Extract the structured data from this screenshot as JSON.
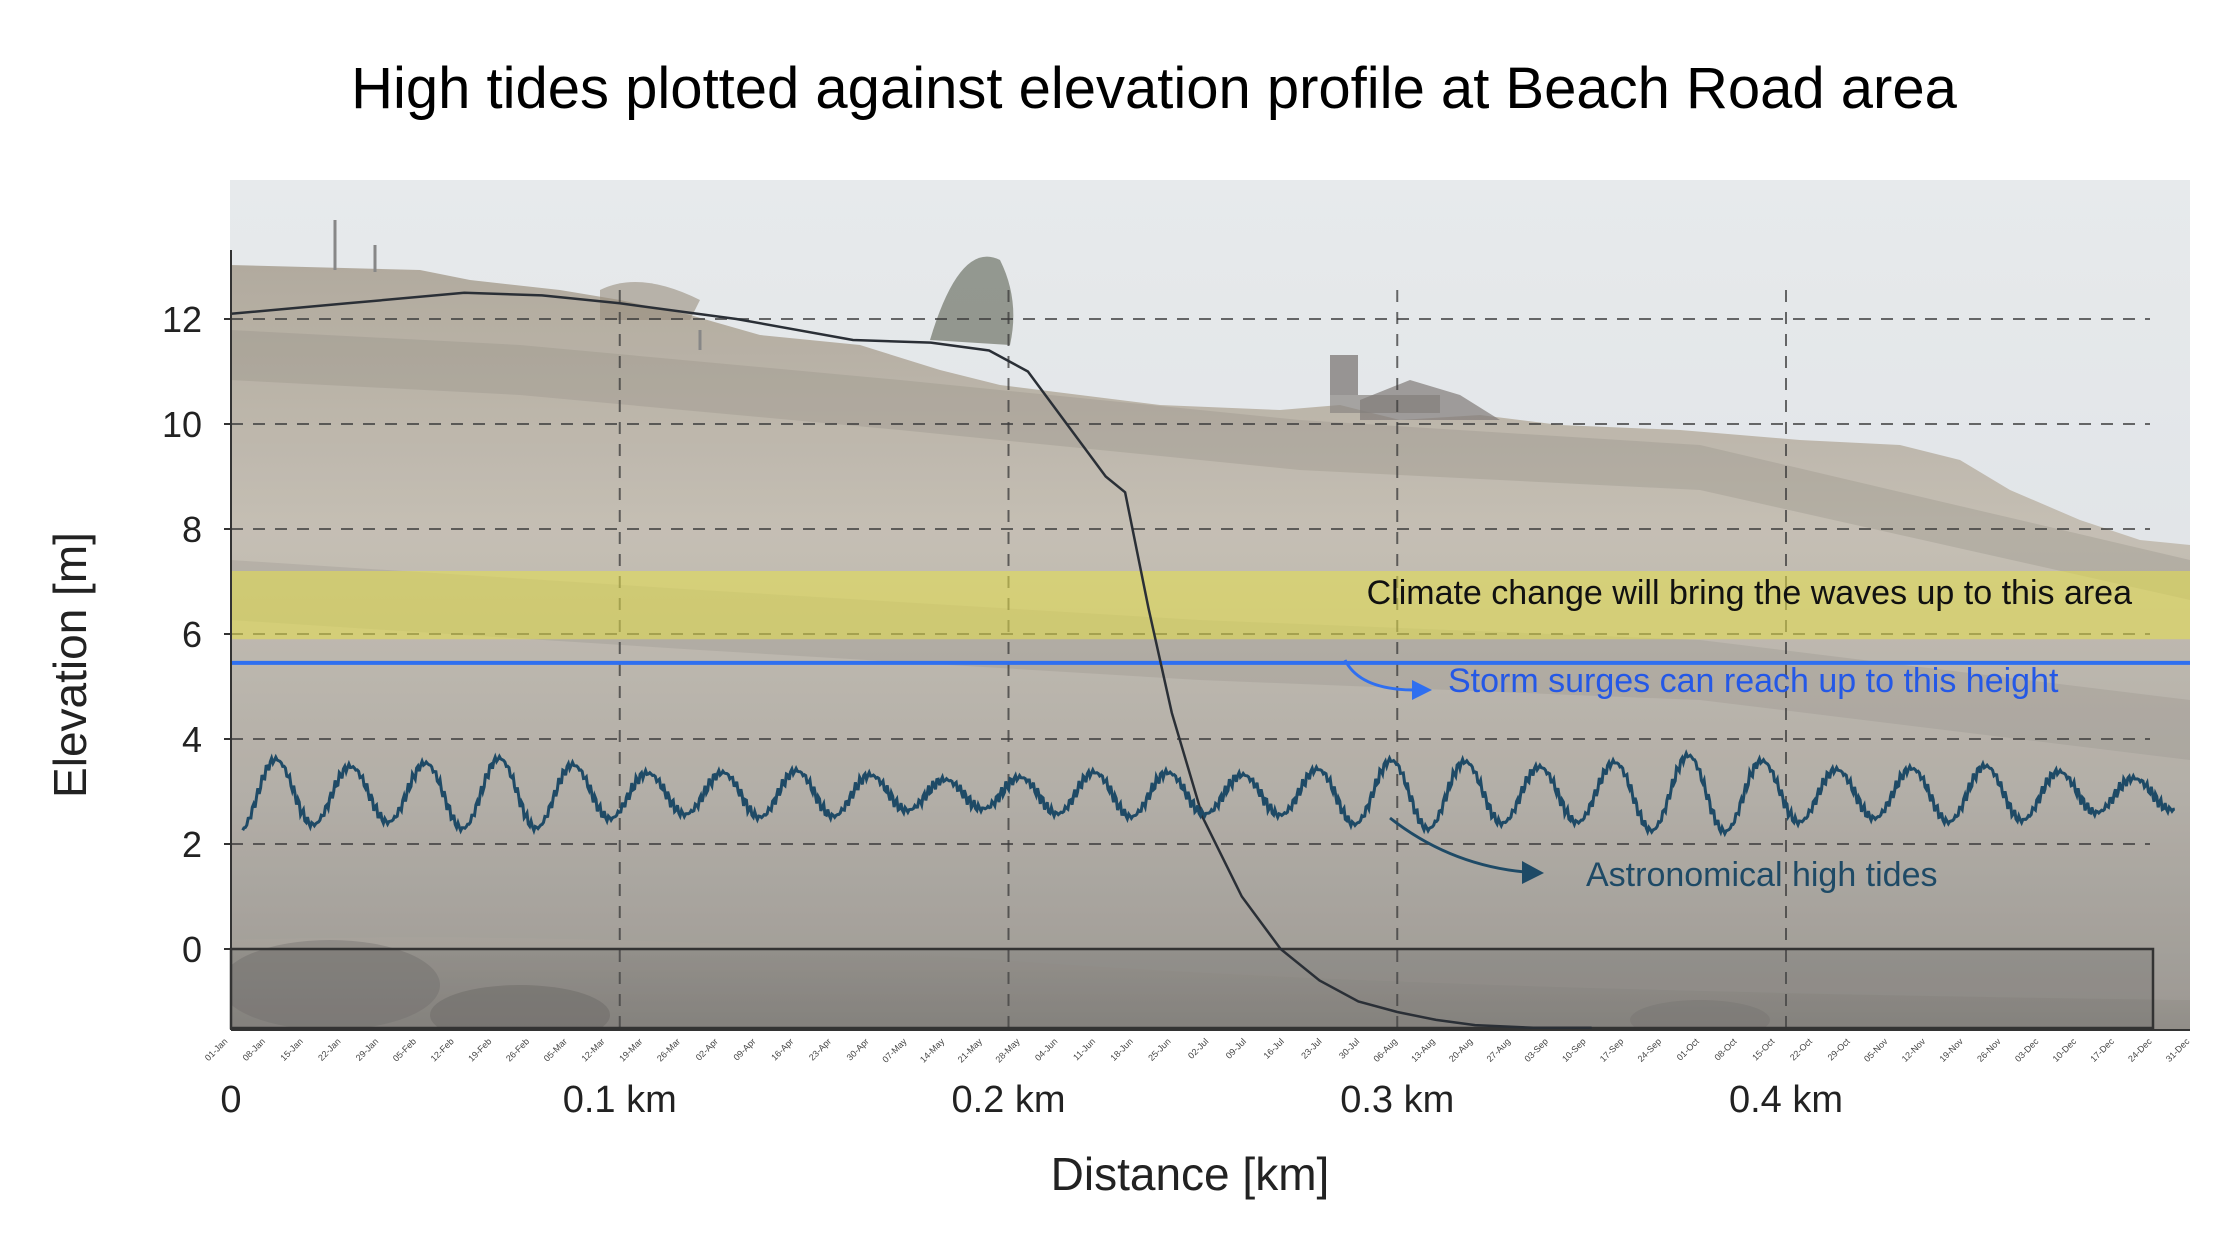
{
  "chart_data": {
    "type": "line",
    "title": "High tides plotted against elevation profile at Beach Road area",
    "xlabel": "Distance [km]",
    "ylabel": "Elevation [m]",
    "xlim": [
      0,
      0.5
    ],
    "ylim": [
      -1.7,
      14.5
    ],
    "grid": true,
    "yticks": [
      0,
      2,
      4,
      6,
      8,
      10,
      12
    ],
    "xticks": [
      {
        "value": 0,
        "label": "0"
      },
      {
        "value": 0.1,
        "label": "0.1 km"
      },
      {
        "value": 0.2,
        "label": "0.2 km"
      },
      {
        "value": 0.3,
        "label": "0.3 km"
      },
      {
        "value": 0.4,
        "label": "0.4 km"
      }
    ],
    "date_ticks": [
      "01-Jan",
      "08-Jan",
      "15-Jan",
      "22-Jan",
      "29-Jan",
      "05-Feb",
      "12-Feb",
      "19-Feb",
      "26-Feb",
      "05-Mar",
      "12-Mar",
      "19-Mar",
      "26-Mar",
      "02-Apr",
      "09-Apr",
      "16-Apr",
      "23-Apr",
      "30-Apr",
      "07-May",
      "14-May",
      "21-May",
      "28-May",
      "04-Jun",
      "11-Jun",
      "18-Jun",
      "25-Jun",
      "02-Jul",
      "09-Jul",
      "16-Jul",
      "23-Jul",
      "30-Jul",
      "06-Aug",
      "13-Aug",
      "20-Aug",
      "27-Aug",
      "03-Sep",
      "10-Sep",
      "17-Sep",
      "24-Sep",
      "01-Oct",
      "08-Oct",
      "15-Oct",
      "22-Oct",
      "29-Oct",
      "05-Nov",
      "12-Nov",
      "19-Nov",
      "26-Nov",
      "03-Dec",
      "10-Dec",
      "17-Dec",
      "24-Dec",
      "31-Dec"
    ],
    "series": [
      {
        "role": "elevation-profile",
        "color": "#2a2f36",
        "x": [
          0,
          0.03,
          0.06,
          0.08,
          0.1,
          0.13,
          0.16,
          0.18,
          0.195,
          0.205,
          0.215,
          0.225,
          0.23,
          0.236,
          0.242,
          0.25,
          0.26,
          0.27,
          0.28,
          0.29,
          0.3,
          0.31,
          0.32,
          0.335,
          0.35
        ],
        "y": [
          12.1,
          12.3,
          12.5,
          12.45,
          12.3,
          12.0,
          11.6,
          11.55,
          11.4,
          11.0,
          10.0,
          9.0,
          8.7,
          6.5,
          4.5,
          2.5,
          1.0,
          0.0,
          -0.6,
          -1.0,
          -1.2,
          -1.35,
          -1.45,
          -1.5,
          -1.5
        ]
      },
      {
        "role": "astronomical-high-tides",
        "color": "#1e4a66",
        "x_start": 0.003,
        "x_end": 0.5,
        "cycles": 26,
        "mean": 2.95,
        "amplitude_min": 0.35,
        "amplitude_max": 0.75,
        "min_value": 2.1,
        "max_value": 3.9
      }
    ],
    "bands": [
      {
        "role": "climate-change-band",
        "y_from": 5.9,
        "y_to": 7.2,
        "color": "#e6e04a"
      }
    ],
    "hlines": [
      {
        "role": "storm-surge-line",
        "y": 5.45,
        "color": "#2f6ff0"
      }
    ],
    "annotations": [
      {
        "text": "Climate change will bring the waves up to this area",
        "color": "#111111"
      },
      {
        "text": "Storm surges can reach up to this height",
        "color": "#2458e6"
      },
      {
        "text": "Astronomical high tides",
        "color": "#1e4a66"
      }
    ],
    "background": "photo of eroding coastal cliff",
    "colors": {
      "sky": "#dde1e4",
      "cliff": "#b9b3a8",
      "cliff_dark": "#8f8a82",
      "grid": "#3a3a3a"
    }
  }
}
